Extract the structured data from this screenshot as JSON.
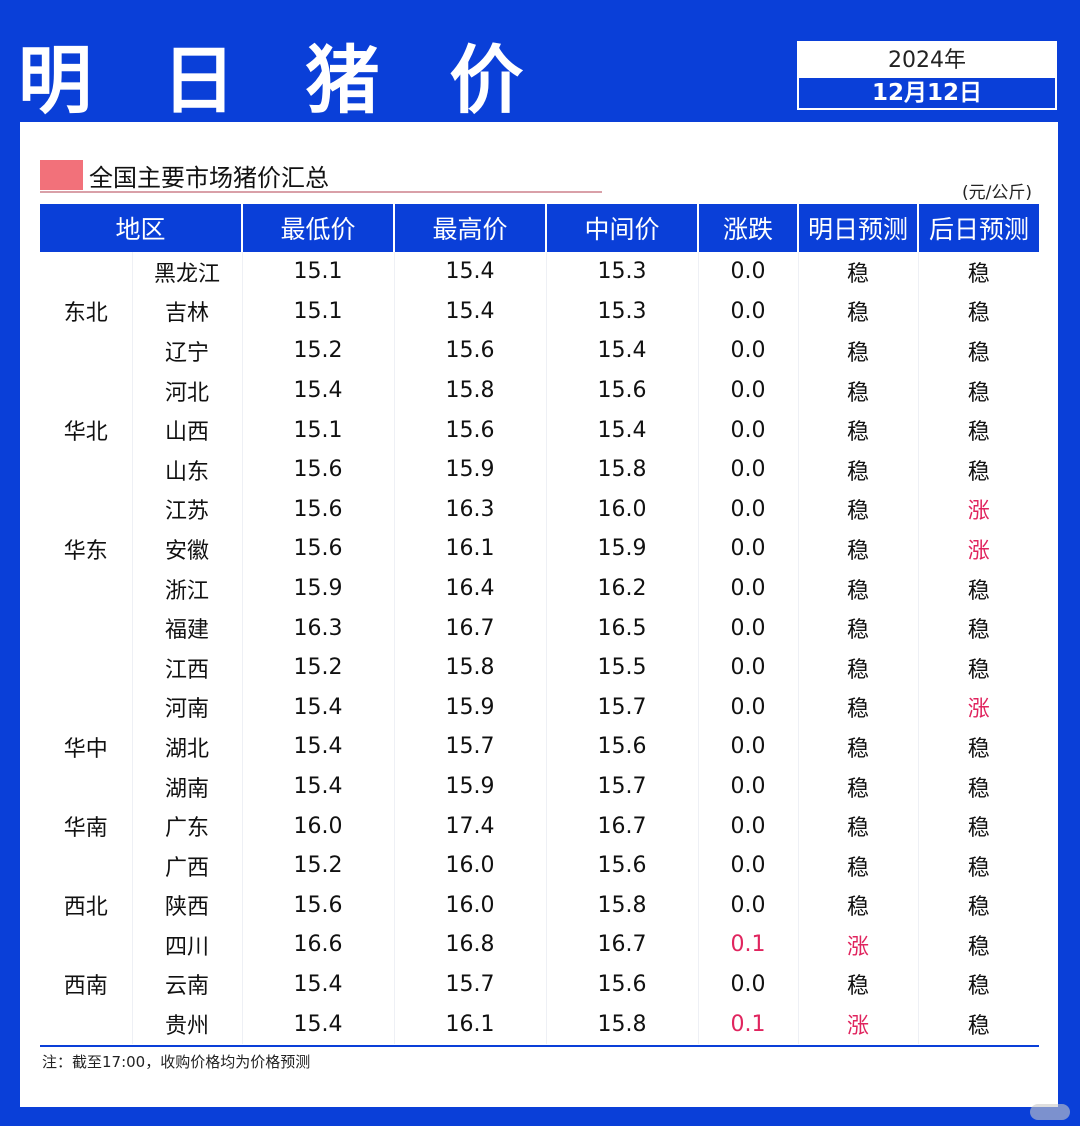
{
  "header": {
    "title": "明 日 猪 价",
    "year": "2024年",
    "date": "12月12日"
  },
  "section": {
    "title": "全国主要市场猪价汇总",
    "unit": "(元/公斤)",
    "swatch_color": "#f2717a"
  },
  "table": {
    "columns": [
      "地区",
      "最低价",
      "最高价",
      "中间价",
      "涨跌",
      "明日预测",
      "后日预测"
    ],
    "rows": [
      {
        "region": "",
        "province": "黑龙江",
        "low": "15.1",
        "high": "15.4",
        "mid": "15.3",
        "change": "0.0",
        "tomorrow": "稳",
        "after": "稳"
      },
      {
        "region": "东北",
        "province": "吉林",
        "low": "15.1",
        "high": "15.4",
        "mid": "15.3",
        "change": "0.0",
        "tomorrow": "稳",
        "after": "稳"
      },
      {
        "region": "",
        "province": "辽宁",
        "low": "15.2",
        "high": "15.6",
        "mid": "15.4",
        "change": "0.0",
        "tomorrow": "稳",
        "after": "稳"
      },
      {
        "region": "",
        "province": "河北",
        "low": "15.4",
        "high": "15.8",
        "mid": "15.6",
        "change": "0.0",
        "tomorrow": "稳",
        "after": "稳"
      },
      {
        "region": "华北",
        "province": "山西",
        "low": "15.1",
        "high": "15.6",
        "mid": "15.4",
        "change": "0.0",
        "tomorrow": "稳",
        "after": "稳"
      },
      {
        "region": "",
        "province": "山东",
        "low": "15.6",
        "high": "15.9",
        "mid": "15.8",
        "change": "0.0",
        "tomorrow": "稳",
        "after": "稳"
      },
      {
        "region": "",
        "province": "江苏",
        "low": "15.6",
        "high": "16.3",
        "mid": "16.0",
        "change": "0.0",
        "tomorrow": "稳",
        "after": "涨"
      },
      {
        "region": "华东",
        "province": "安徽",
        "low": "15.6",
        "high": "16.1",
        "mid": "15.9",
        "change": "0.0",
        "tomorrow": "稳",
        "after": "涨"
      },
      {
        "region": "",
        "province": "浙江",
        "low": "15.9",
        "high": "16.4",
        "mid": "16.2",
        "change": "0.0",
        "tomorrow": "稳",
        "after": "稳"
      },
      {
        "region": "",
        "province": "福建",
        "low": "16.3",
        "high": "16.7",
        "mid": "16.5",
        "change": "0.0",
        "tomorrow": "稳",
        "after": "稳"
      },
      {
        "region": "",
        "province": "江西",
        "low": "15.2",
        "high": "15.8",
        "mid": "15.5",
        "change": "0.0",
        "tomorrow": "稳",
        "after": "稳"
      },
      {
        "region": "",
        "province": "河南",
        "low": "15.4",
        "high": "15.9",
        "mid": "15.7",
        "change": "0.0",
        "tomorrow": "稳",
        "after": "涨"
      },
      {
        "region": "华中",
        "province": "湖北",
        "low": "15.4",
        "high": "15.7",
        "mid": "15.6",
        "change": "0.0",
        "tomorrow": "稳",
        "after": "稳"
      },
      {
        "region": "",
        "province": "湖南",
        "low": "15.4",
        "high": "15.9",
        "mid": "15.7",
        "change": "0.0",
        "tomorrow": "稳",
        "after": "稳"
      },
      {
        "region": "华南",
        "province": "广东",
        "low": "16.0",
        "high": "17.4",
        "mid": "16.7",
        "change": "0.0",
        "tomorrow": "稳",
        "after": "稳"
      },
      {
        "region": "",
        "province": "广西",
        "low": "15.2",
        "high": "16.0",
        "mid": "15.6",
        "change": "0.0",
        "tomorrow": "稳",
        "after": "稳"
      },
      {
        "region": "西北",
        "province": "陕西",
        "low": "15.6",
        "high": "16.0",
        "mid": "15.8",
        "change": "0.0",
        "tomorrow": "稳",
        "after": "稳"
      },
      {
        "region": "",
        "province": "四川",
        "low": "16.6",
        "high": "16.8",
        "mid": "16.7",
        "change": "0.1",
        "tomorrow": "涨",
        "after": "稳"
      },
      {
        "region": "西南",
        "province": "云南",
        "low": "15.4",
        "high": "15.7",
        "mid": "15.6",
        "change": "0.0",
        "tomorrow": "稳",
        "after": "稳"
      },
      {
        "region": "",
        "province": "贵州",
        "low": "15.4",
        "high": "16.1",
        "mid": "15.8",
        "change": "0.1",
        "tomorrow": "涨",
        "after": "稳"
      }
    ],
    "up_color": "#e0245e"
  },
  "footer": {
    "note": "注：截至17:00，收购价格均为价格预测"
  }
}
